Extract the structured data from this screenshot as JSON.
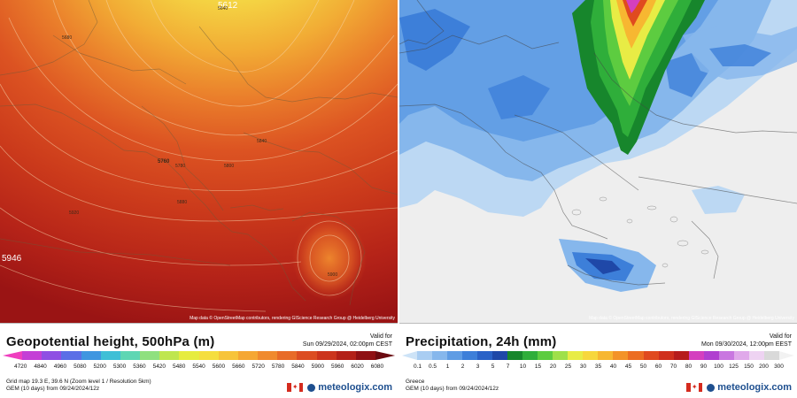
{
  "left_panel": {
    "title": "Geopotential height, 500hPa (m)",
    "valid_label": "Valid for",
    "valid_time": "Sun 09/29/2024, 02:00pm CEST",
    "attribution": "Map data © OpenStreetMap contributors, rendering GIScience Research Group @ Heidelberg University",
    "scale_values": [
      "4720",
      "4840",
      "4960",
      "5080",
      "5200",
      "5300",
      "5360",
      "5420",
      "5480",
      "5540",
      "5600",
      "5660",
      "5720",
      "5780",
      "5840",
      "5900",
      "5960",
      "6020",
      "6080"
    ],
    "scale_colors": [
      "#ef3fbf",
      "#c43fd6",
      "#8f4fe3",
      "#5b6fe6",
      "#3f96e0",
      "#3fbfd6",
      "#5fd6b3",
      "#8fe07f",
      "#bfe64f",
      "#e6ec3f",
      "#f5de3f",
      "#f7c43a",
      "#f5a733",
      "#f08a2e",
      "#e86b28",
      "#dc4d22",
      "#cc341d",
      "#b32018",
      "#8f1014",
      "#6a0a10"
    ],
    "contour_labels": [
      "5612",
      "5640",
      "5680",
      "5760",
      "5780",
      "5800",
      "5840",
      "5880",
      "5900",
      "5920",
      "5946"
    ],
    "info_lines": [
      "Grid map 19.3 E, 39.6 N (Zoom level 1 / Resolution 5km)",
      "GEM (10 days) from 09/24/2024/12z"
    ],
    "brand": "meteologix.com"
  },
  "right_panel": {
    "title": "Precipitation, 24h (mm)",
    "valid_label": "Valid for",
    "valid_time": "Mon 09/30/2024, 12:00pm EEST",
    "attribution": "Map data © OpenStreetMap contributors, rendering GIScience Research Group @ Heidelberg University",
    "scale_values": [
      "0.1",
      "0.5",
      "1",
      "2",
      "3",
      "5",
      "7",
      "10",
      "15",
      "20",
      "25",
      "30",
      "35",
      "40",
      "45",
      "50",
      "60",
      "70",
      "80",
      "90",
      "100",
      "125",
      "150",
      "200",
      "300"
    ],
    "scale_colors": [
      "#cde3f7",
      "#a9cdf2",
      "#86b7ec",
      "#5f9ce4",
      "#3d7fd9",
      "#2a62c7",
      "#1f48a8",
      "#17862c",
      "#2fae3a",
      "#5dcc40",
      "#9fe04a",
      "#e8ec45",
      "#f7d73c",
      "#f7b731",
      "#f39328",
      "#ec6d22",
      "#e04a1f",
      "#d0301d",
      "#b61c1c",
      "#d43fbf",
      "#b03fd0",
      "#c977e0",
      "#e0a9ea",
      "#eed3f2",
      "#d9d9d9",
      "#f2f2f2"
    ],
    "info_lines": [
      "Greece",
      "GEM (10 days) from 09/24/2024/12z"
    ],
    "brand": "meteologix.com"
  },
  "icons": {
    "flag": "canada-flag-icon",
    "logo": "meteologix-logo-icon"
  }
}
